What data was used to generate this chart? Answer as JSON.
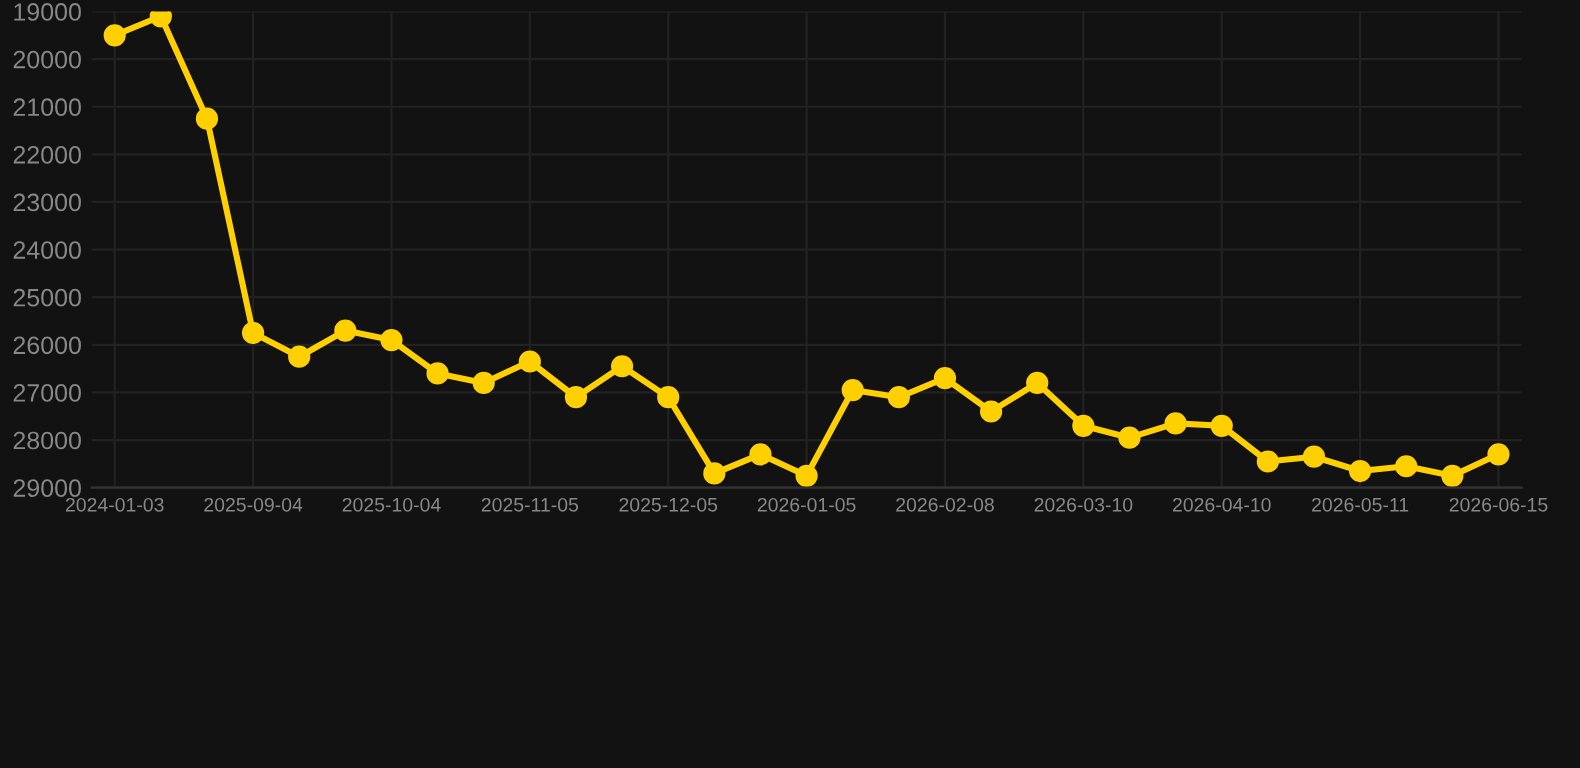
{
  "chart_data": {
    "type": "line",
    "categories": [
      "2024-01-03",
      null,
      null,
      "2025-09-04",
      null,
      null,
      "2025-10-04",
      null,
      null,
      "2025-11-05",
      null,
      null,
      "2025-12-05",
      null,
      null,
      "2026-01-05",
      null,
      null,
      "2026-02-08",
      null,
      null,
      "2026-03-10",
      null,
      null,
      "2026-04-10",
      null,
      null,
      "2026-05-11",
      null,
      null,
      "2026-06-15"
    ],
    "series": [
      {
        "color": "#ffd000",
        "values": [
          19500,
          19100,
          21250,
          25750,
          26250,
          25700,
          25900,
          26600,
          26800,
          26350,
          27100,
          26450,
          27100,
          28700,
          28300,
          28750,
          26950,
          27100,
          26700,
          27400,
          26800,
          27700,
          27950,
          27650,
          27700,
          28450,
          28350,
          28650,
          28550,
          28750,
          28300
        ]
      }
    ],
    "ylim": [
      29000,
      19000
    ],
    "yticks": [
      19000,
      20000,
      21000,
      22000,
      23000,
      24000,
      25000,
      26000,
      27000,
      28000,
      29000
    ],
    "grid": true,
    "marker": "circle",
    "line_style": "solid"
  }
}
